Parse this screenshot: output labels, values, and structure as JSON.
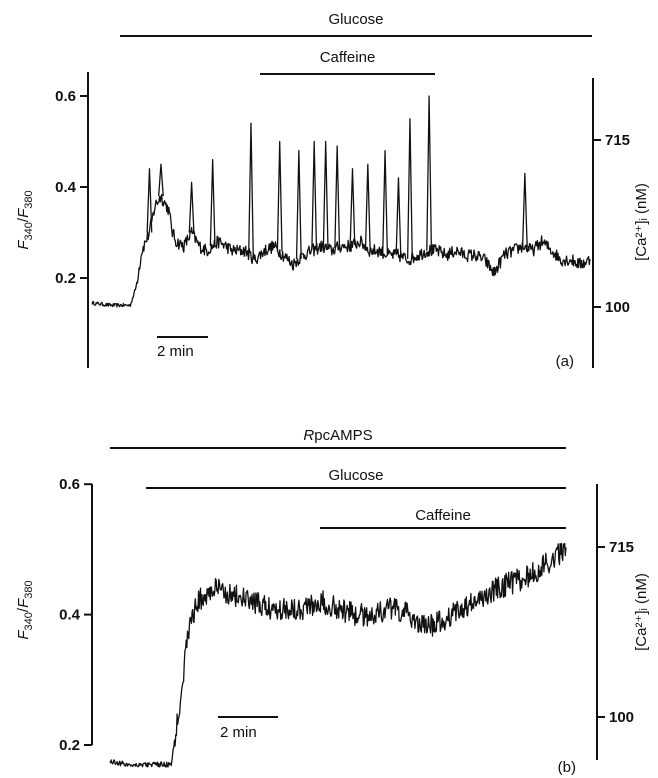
{
  "chart_data": [
    {
      "type": "line",
      "panel_label": "(a)",
      "left_axis": {
        "label_main": "F",
        "label_sub1": "340",
        "label_slash": "/",
        "label_main2": "F",
        "label_sub2": "380",
        "ticks": [
          0.2,
          0.4,
          0.6
        ],
        "tick_labels": [
          "0.2",
          "0.4",
          "0.6"
        ],
        "range": [
          0.14,
          0.6
        ]
      },
      "right_axis": {
        "label": "[Ca²⁺]ᵢ (nM)",
        "ticks": [
          100,
          715
        ],
        "tick_labels": [
          "100",
          "715"
        ]
      },
      "scale_bar": "2 min",
      "x_range_min": [
        0,
        26
      ],
      "treatments": [
        {
          "label": "Glucose",
          "start_min": 1.5,
          "end_min": 26
        },
        {
          "label": "Caffeine",
          "start_min": 9.5,
          "end_min": 17
        }
      ],
      "baseline": 0.145,
      "series": [
        {
          "values_min": [
            0,
            1,
            2,
            2.3,
            2.6,
            3,
            3.3,
            3.6,
            4,
            4.2,
            4.4,
            4.8,
            5.2,
            5.6,
            6,
            6.3,
            6.6,
            7,
            7.3,
            7.6,
            8,
            8.5,
            9,
            9.5,
            10,
            10.5,
            11,
            11.5,
            12,
            12.5,
            13,
            13.5,
            14,
            14.5,
            15,
            15.5,
            16,
            16.5,
            17,
            17.5,
            18,
            18.5,
            19,
            19.5,
            20,
            20.5,
            21,
            21.5,
            22,
            22.5,
            23,
            23.5,
            24,
            24.5,
            25,
            25.5,
            26
          ],
          "values": [
            0.145,
            0.14,
            0.14,
            0.18,
            0.26,
            0.3,
            0.36,
            0.38,
            0.35,
            0.3,
            0.28,
            0.27,
            0.3,
            0.27,
            0.26,
            0.27,
            0.28,
            0.27,
            0.26,
            0.26,
            0.26,
            0.24,
            0.26,
            0.27,
            0.25,
            0.23,
            0.25,
            0.26,
            0.27,
            0.26,
            0.27,
            0.27,
            0.28,
            0.26,
            0.26,
            0.25,
            0.25,
            0.24,
            0.25,
            0.26,
            0.26,
            0.25,
            0.26,
            0.25,
            0.25,
            0.24,
            0.21,
            0.25,
            0.26,
            0.27,
            0.26,
            0.28,
            0.26,
            0.24,
            0.24,
            0.23,
            0.24
          ]
        }
      ],
      "spikes": [
        {
          "x_min": 3.0,
          "peak": 0.44
        },
        {
          "x_min": 3.6,
          "peak": 0.45
        },
        {
          "x_min": 5.2,
          "peak": 0.41
        },
        {
          "x_min": 6.3,
          "peak": 0.46
        },
        {
          "x_min": 8.3,
          "peak": 0.54
        },
        {
          "x_min": 9.8,
          "peak": 0.5
        },
        {
          "x_min": 10.8,
          "peak": 0.48
        },
        {
          "x_min": 11.6,
          "peak": 0.5
        },
        {
          "x_min": 12.2,
          "peak": 0.5
        },
        {
          "x_min": 12.8,
          "peak": 0.49
        },
        {
          "x_min": 13.6,
          "peak": 0.44
        },
        {
          "x_min": 14.4,
          "peak": 0.45
        },
        {
          "x_min": 15.3,
          "peak": 0.48
        },
        {
          "x_min": 16.0,
          "peak": 0.42
        },
        {
          "x_min": 16.6,
          "peak": 0.55
        },
        {
          "x_min": 17.6,
          "peak": 0.6
        },
        {
          "x_min": 22.6,
          "peak": 0.43
        }
      ]
    },
    {
      "type": "line",
      "panel_label": "(b)",
      "left_axis": {
        "label_main": "F",
        "label_sub1": "340",
        "label_slash": "/",
        "label_main2": "F",
        "label_sub2": "380",
        "ticks": [
          0.2,
          0.4,
          0.6
        ],
        "tick_labels": [
          "0.2",
          "0.4",
          "0.6"
        ],
        "range": [
          0.17,
          0.6
        ]
      },
      "right_axis": {
        "label": "[Ca²⁺]ᵢ (nM)",
        "ticks": [
          100,
          715
        ],
        "tick_labels": [
          "100",
          "715"
        ]
      },
      "scale_bar": "2 min",
      "x_range_min": [
        0,
        26
      ],
      "treatments": [
        {
          "label_italic": "R",
          "label": "pcAMPS",
          "start_min": 0,
          "end_min": 26
        },
        {
          "label": "Glucose",
          "start_min": 2,
          "end_min": 26
        },
        {
          "label": "Caffeine",
          "start_min": 11.5,
          "end_min": 26
        }
      ],
      "series": [
        {
          "values_min": [
            0,
            1,
            2,
            3,
            3.5,
            4,
            4.5,
            5,
            5.5,
            6,
            7,
            8,
            9,
            10,
            11,
            12,
            13,
            14,
            15,
            16,
            17,
            18,
            19,
            20,
            21,
            22,
            23,
            24,
            25,
            26
          ],
          "values": [
            0.175,
            0.17,
            0.17,
            0.17,
            0.17,
            0.27,
            0.38,
            0.42,
            0.43,
            0.44,
            0.43,
            0.42,
            0.41,
            0.41,
            0.41,
            0.42,
            0.41,
            0.4,
            0.4,
            0.41,
            0.4,
            0.38,
            0.39,
            0.41,
            0.42,
            0.44,
            0.45,
            0.46,
            0.48,
            0.5
          ]
        }
      ]
    }
  ]
}
